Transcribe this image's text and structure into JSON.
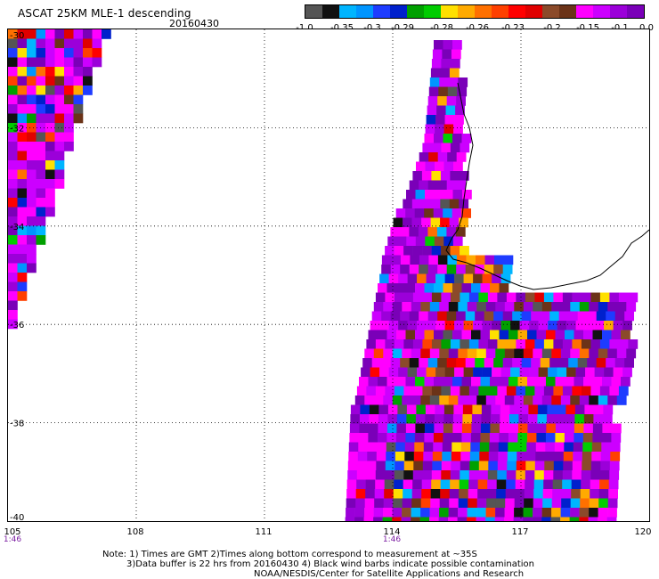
{
  "header": {
    "title": "ASCAT 25KM MLE-1 descending",
    "date": "20160430"
  },
  "colorbar": {
    "colors": [
      "#555555",
      "#111111",
      "#00b5ff",
      "#0095ff",
      "#1e3cff",
      "#0020cc",
      "#00a000",
      "#00cc00",
      "#ffe000",
      "#ffaa00",
      "#ff7000",
      "#ff4000",
      "#ff0000",
      "#e00000",
      "#8b4a2a",
      "#6b3318",
      "#ff00ff",
      "#cc00ff",
      "#9b00d9",
      "#7a00b8"
    ],
    "labels": [
      "-1.0",
      "-0.35",
      "-0.3",
      "-0.29",
      "-0.28",
      "-0.26",
      "-0.23",
      "-0.2",
      "-0.15",
      "-0.1",
      "0.0"
    ]
  },
  "axes": {
    "x_ticks": [
      "105",
      "108",
      "111",
      "114",
      "117",
      "120"
    ],
    "y_ticks": [
      "-30",
      "-32",
      "-34",
      "-36",
      "-38",
      "-40"
    ],
    "x_range": [
      105,
      120
    ],
    "y_range": [
      -40,
      -30
    ]
  },
  "pass_times": [
    {
      "lon": 105,
      "label": "1:46"
    },
    {
      "lon": 114,
      "label": "1:46"
    }
  ],
  "notes": {
    "line1": "Note: 1) Times are GMT 2)Times along bottom correspond to measurement at ~35S",
    "line2": "3)Data buffer is 22 hrs from 20160430 4) Black wind barbs indicate possible contamination",
    "line3": "NOAA/NESDIS/Center for Satellite Applications and Research"
  }
}
